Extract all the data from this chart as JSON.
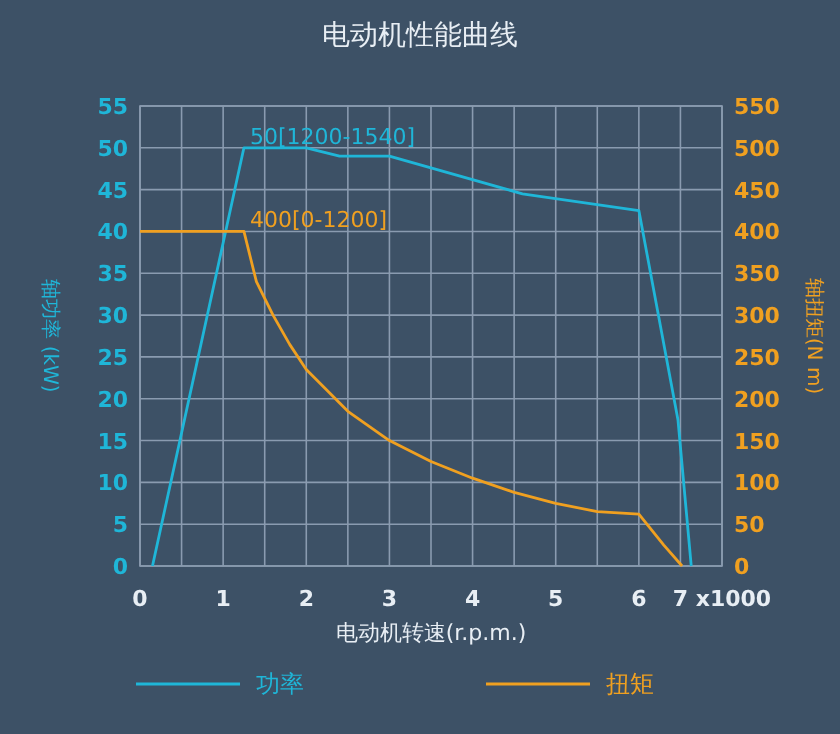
{
  "chart_data": {
    "type": "line",
    "title": "电动机性能曲线",
    "xlabel": "电动机转速(r.p.m.)",
    "ylabel": "轴功率 (kW)",
    "y2label": "轴扭矩(N m)",
    "xlim": [
      0,
      7
    ],
    "xticks": [
      0,
      1,
      2,
      3,
      4,
      5,
      6,
      {
        "value": 7,
        "label": "7 x1000"
      }
    ],
    "ylim": [
      0,
      55
    ],
    "yticks": [
      0,
      5,
      10,
      15,
      20,
      25,
      30,
      35,
      40,
      45,
      50,
      55
    ],
    "y2lim": [
      0,
      550
    ],
    "y2ticks": [
      0,
      50,
      100,
      150,
      200,
      250,
      300,
      350,
      400,
      450,
      500,
      550
    ],
    "grid": true,
    "legend": "bottom",
    "marker": "none",
    "line_style": "solid",
    "series": [
      {
        "name": "功率",
        "color": "#1fb6d8",
        "x": [
          0.15,
          1.25,
          2.0,
          2.4,
          3.0,
          4.6,
          6.0,
          6.47,
          6.63
        ],
        "values": [
          0,
          50,
          50,
          49,
          49,
          44.5,
          42.5,
          17.5,
          0
        ]
      },
      {
        "name": "扭矩",
        "color": "#f0a020",
        "axis": "y2",
        "x": [
          0,
          1.25,
          1.4,
          1.6,
          1.8,
          2.0,
          2.5,
          3.0,
          3.5,
          4.0,
          4.5,
          5.0,
          5.5,
          6.0,
          6.3,
          6.52
        ],
        "values": [
          400,
          400,
          340,
          300,
          265,
          235,
          185,
          150,
          125,
          105,
          88,
          75,
          65,
          62,
          25,
          0
        ]
      }
    ],
    "annotations": [
      {
        "text": "50[1200-1540]",
        "x": 1.25,
        "y": 50
      },
      {
        "text": "400[0-1200]",
        "x": 1.25,
        "y": 40
      }
    ]
  }
}
